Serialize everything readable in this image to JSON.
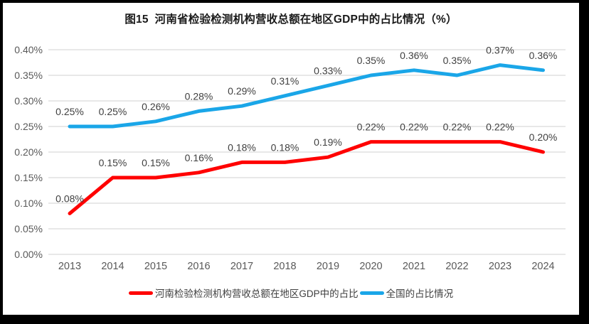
{
  "chart_data": {
    "type": "line",
    "title": "图15  河南省检验检测机构营收总额在地区GDP中的占比情况（%）",
    "categories": [
      "2013",
      "2014",
      "2015",
      "2016",
      "2017",
      "2018",
      "2019",
      "2020",
      "2021",
      "2022",
      "2023",
      "2024"
    ],
    "series": [
      {
        "name": "河南检验检测机构营收总额在地区GDP中的占比",
        "color": "#FF0000",
        "values": [
          0.08,
          0.15,
          0.15,
          0.16,
          0.18,
          0.18,
          0.19,
          0.22,
          0.22,
          0.22,
          0.22,
          0.2
        ],
        "data_labels": [
          "0.08%",
          "0.15%",
          "0.15%",
          "0.16%",
          "0.18%",
          "0.18%",
          "0.19%",
          "0.22%",
          "0.22%",
          "0.22%",
          "0.22%",
          "0.20%"
        ]
      },
      {
        "name": "全国的占比情况",
        "color": "#1AA6E8",
        "values": [
          0.25,
          0.25,
          0.26,
          0.28,
          0.29,
          0.31,
          0.33,
          0.35,
          0.36,
          0.35,
          0.37,
          0.36
        ],
        "data_labels": [
          "0.25%",
          "0.25%",
          "0.26%",
          "0.28%",
          "0.29%",
          "0.31%",
          "0.33%",
          "0.35%",
          "0.36%",
          "0.35%",
          "0.37%",
          "0.36%"
        ]
      }
    ],
    "y_axis": {
      "min": 0,
      "max": 0.4,
      "step": 0.05,
      "tick_labels": [
        "0.00%",
        "0.05%",
        "0.10%",
        "0.15%",
        "0.20%",
        "0.25%",
        "0.30%",
        "0.35%",
        "0.40%"
      ]
    },
    "grid": true,
    "legend_position": "bottom"
  },
  "colors": {
    "gridline": "#D9D9D9",
    "axis_text": "#595959",
    "data_label_text": "#404040",
    "title_text": "#1A1A1A",
    "frame_border": "#000000",
    "background": "#FFFFFF"
  }
}
